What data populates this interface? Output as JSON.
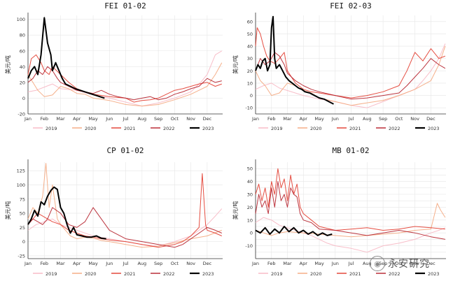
{
  "colors": {
    "2019": "#f7b7c3",
    "2020": "#f4a77e",
    "2021": "#e23b2e",
    "2022": "#b51f2a",
    "2023": "#000000",
    "grid": "#e6e6e6",
    "axis": "#333333"
  },
  "watermark": {
    "icon": "wechat-logo-icon",
    "text": "永安研究"
  },
  "chart_data": [
    {
      "type": "line",
      "title": "FEI 01-02",
      "ylabel": "美元/吨",
      "ylim": [
        -20,
        105
      ],
      "yticks": [
        -20,
        0,
        20,
        40,
        60,
        80,
        100
      ],
      "xticks": [
        "Jan",
        "Feb",
        "Mar",
        "Apr",
        "May",
        "Jun",
        "Jul",
        "Aug",
        "Sep",
        "Oct",
        "Nov",
        "Dec"
      ],
      "legend": "bottom",
      "series": [
        {
          "name": "2019",
          "x": [
            0,
            0.5,
            1,
            1.5,
            2,
            3,
            4,
            5,
            6,
            7,
            8,
            9,
            10,
            10.6,
            11,
            11.5,
            11.9
          ],
          "y": [
            8,
            10,
            14,
            18,
            12,
            10,
            4,
            0,
            -5,
            -10,
            -6,
            0,
            8,
            20,
            30,
            55,
            60
          ]
        },
        {
          "name": "2020",
          "x": [
            0,
            0.3,
            0.6,
            1,
            1.5,
            2,
            2.5,
            3,
            3.5,
            4,
            5,
            6,
            7,
            8,
            9,
            10,
            11,
            11.5,
            11.9
          ],
          "y": [
            30,
            20,
            10,
            2,
            4,
            15,
            12,
            6,
            5,
            0,
            -3,
            -8,
            -10,
            -8,
            -2,
            5,
            15,
            30,
            45
          ]
        },
        {
          "name": "2021",
          "x": [
            0,
            0.2,
            0.5,
            0.8,
            1,
            1.3,
            1.5,
            2,
            2.5,
            3,
            3.5,
            4,
            5,
            6,
            6.5,
            7,
            7.5,
            8,
            8.5,
            9,
            9.5,
            10,
            10.5,
            11,
            11.5,
            11.9
          ],
          "y": [
            30,
            50,
            55,
            45,
            35,
            30,
            40,
            30,
            20,
            12,
            8,
            5,
            2,
            0,
            -5,
            -3,
            -2,
            0,
            5,
            10,
            12,
            15,
            18,
            20,
            15,
            18
          ]
        },
        {
          "name": "2022",
          "x": [
            0,
            0.3,
            0.6,
            0.9,
            1.2,
            1.5,
            1.8,
            2,
            2.5,
            3,
            3.5,
            4,
            4.5,
            5,
            5.5,
            6,
            6.5,
            7,
            7.5,
            8,
            8.5,
            9,
            9.5,
            10,
            10.5,
            11,
            11.5,
            11.9
          ],
          "y": [
            20,
            25,
            35,
            30,
            40,
            35,
            25,
            20,
            15,
            10,
            8,
            6,
            10,
            5,
            2,
            0,
            -2,
            0,
            2,
            -2,
            0,
            5,
            8,
            12,
            15,
            25,
            20,
            22
          ]
        },
        {
          "name": "2023",
          "x": [
            0,
            0.2,
            0.4,
            0.6,
            0.8,
            1,
            1.2,
            1.4,
            1.5,
            1.7,
            1.9,
            2.1,
            2.3,
            2.6,
            2.9,
            3.2,
            3.5,
            3.8,
            4.1,
            4.4,
            4.7
          ],
          "y": [
            25,
            35,
            40,
            30,
            55,
            102,
            70,
            55,
            35,
            45,
            35,
            25,
            18,
            15,
            12,
            10,
            8,
            6,
            4,
            2,
            0
          ]
        }
      ]
    },
    {
      "type": "line",
      "title": "FEI 02-03",
      "ylabel": "美元/吨",
      "ylim": [
        -15,
        65
      ],
      "yticks": [
        -10,
        0,
        10,
        20,
        30,
        40,
        50,
        60
      ],
      "xticks": [
        "Jan",
        "Feb",
        "Mar",
        "Apr",
        "May",
        "Jun",
        "Jul",
        "Aug",
        "Sep",
        "Oct",
        "Nov",
        "Dec"
      ],
      "legend": "bottom",
      "series": [
        {
          "name": "2019",
          "x": [
            0,
            0.5,
            1,
            1.5,
            2,
            3,
            4,
            5,
            6,
            7,
            8,
            9,
            10,
            10.5,
            11,
            11.5,
            11.9
          ],
          "y": [
            5,
            8,
            10,
            6,
            4,
            0,
            -3,
            -5,
            -8,
            -10,
            -5,
            0,
            5,
            12,
            20,
            30,
            42
          ]
        },
        {
          "name": "2020",
          "x": [
            0,
            0.3,
            0.6,
            1,
            1.5,
            2,
            2.5,
            3,
            3.5,
            4,
            5,
            6,
            7,
            8,
            9,
            10,
            11,
            11.5,
            11.9
          ],
          "y": [
            20,
            12,
            8,
            0,
            2,
            10,
            8,
            4,
            2,
            -2,
            -5,
            -8,
            -6,
            -4,
            0,
            5,
            12,
            25,
            40
          ]
        },
        {
          "name": "2021",
          "x": [
            0,
            0.1,
            0.3,
            0.5,
            0.7,
            0.9,
            1.2,
            1.5,
            1.8,
            2,
            2.5,
            3,
            3.5,
            4,
            5,
            6,
            7,
            8,
            9,
            9.5,
            10,
            10.5,
            11,
            11.5,
            11.9
          ],
          "y": [
            40,
            55,
            50,
            40,
            32,
            28,
            26,
            30,
            35,
            20,
            10,
            5,
            3,
            2,
            0,
            -2,
            0,
            3,
            8,
            20,
            35,
            28,
            38,
            30,
            32
          ]
        },
        {
          "name": "2022",
          "x": [
            0,
            0.3,
            0.6,
            0.9,
            1.2,
            1.5,
            1.8,
            2,
            2.5,
            3,
            3.5,
            4,
            5,
            6,
            7,
            8,
            9,
            9.5,
            10,
            10.5,
            11,
            11.5,
            11.9
          ],
          "y": [
            20,
            30,
            25,
            28,
            35,
            32,
            25,
            18,
            12,
            8,
            5,
            3,
            0,
            -3,
            -2,
            0,
            2,
            8,
            15,
            22,
            30,
            25,
            22
          ]
        },
        {
          "name": "2023",
          "x": [
            0,
            0.15,
            0.3,
            0.45,
            0.6,
            0.75,
            0.9,
            1,
            1.1,
            1.2,
            1.3,
            1.5,
            1.7,
            1.9,
            2.1,
            2.3,
            2.5,
            2.7,
            2.9,
            3.1,
            3.4,
            3.7,
            4,
            4.3,
            4.6,
            4.9
          ],
          "y": [
            20,
            25,
            22,
            28,
            30,
            20,
            25,
            55,
            64,
            30,
            22,
            25,
            20,
            15,
            12,
            10,
            8,
            6,
            5,
            3,
            2,
            0,
            -2,
            -3,
            -5,
            -7
          ]
        }
      ]
    },
    {
      "type": "line",
      "title": "CP 01-02",
      "ylabel": "美元/吨",
      "ylim": [
        -30,
        140
      ],
      "yticks": [
        -25,
        0,
        25,
        50,
        75,
        100,
        125
      ],
      "xticks": [
        "Jan",
        "Feb",
        "Mar",
        "Apr",
        "May",
        "Jun",
        "Jul",
        "Aug",
        "Sep",
        "Oct",
        "Nov",
        "Dec"
      ],
      "legend": "bottom",
      "series": [
        {
          "name": "2019",
          "x": [
            0,
            0.5,
            1,
            1.5,
            2,
            3,
            4,
            5,
            6,
            7,
            8,
            9,
            10,
            10.5,
            11,
            11.5,
            11.9
          ],
          "y": [
            20,
            30,
            35,
            40,
            30,
            20,
            10,
            5,
            0,
            -5,
            -8,
            0,
            10,
            20,
            30,
            45,
            58
          ]
        },
        {
          "name": "2020",
          "x": [
            0,
            0.3,
            0.6,
            0.9,
            1.1,
            1.3,
            1.5,
            1.8,
            2,
            2.3,
            2.6,
            3,
            3.5,
            4,
            4.5,
            5,
            6,
            7,
            8,
            9,
            10,
            11,
            11.9
          ],
          "y": [
            40,
            60,
            50,
            80,
            138,
            60,
            100,
            40,
            30,
            20,
            10,
            5,
            8,
            6,
            2,
            0,
            -5,
            -10,
            -8,
            -2,
            5,
            10,
            20
          ]
        },
        {
          "name": "2021",
          "x": [
            0,
            0.3,
            0.6,
            0.9,
            1.2,
            1.5,
            2,
            2.5,
            3,
            3.5,
            4,
            4.5,
            5,
            6,
            7,
            8,
            9,
            9.5,
            10,
            10.5,
            10.7,
            10.9,
            11,
            11.5,
            11.9
          ],
          "y": [
            30,
            40,
            50,
            45,
            40,
            35,
            30,
            20,
            15,
            10,
            8,
            5,
            3,
            0,
            -5,
            -10,
            -5,
            0,
            10,
            25,
            120,
            30,
            20,
            15,
            10
          ]
        },
        {
          "name": "2022",
          "x": [
            0,
            0.3,
            0.6,
            0.9,
            1.2,
            1.5,
            2,
            2.5,
            3,
            3.5,
            4,
            4.5,
            5,
            6,
            7,
            8,
            9,
            9.5,
            10,
            10.5,
            11,
            11.5,
            11.9
          ],
          "y": [
            30,
            40,
            35,
            30,
            40,
            60,
            50,
            30,
            25,
            35,
            60,
            40,
            20,
            5,
            0,
            -5,
            -10,
            -5,
            5,
            15,
            25,
            20,
            15
          ]
        },
        {
          "name": "2023",
          "x": [
            0,
            0.2,
            0.4,
            0.6,
            0.8,
            1,
            1.2,
            1.4,
            1.6,
            1.8,
            2,
            2.2,
            2.4,
            2.6,
            2.8,
            3,
            3.3,
            3.6,
            3.9,
            4.2,
            4.5,
            4.8
          ],
          "y": [
            30,
            40,
            55,
            45,
            70,
            65,
            80,
            90,
            96,
            92,
            60,
            50,
            30,
            15,
            25,
            12,
            10,
            8,
            8,
            10,
            6,
            5
          ]
        }
      ]
    },
    {
      "type": "line",
      "title": "MB 01-02",
      "ylabel": "美元/吨",
      "ylim": [
        -20,
        55
      ],
      "yticks": [
        -15,
        -10,
        -5,
        0,
        5,
        10,
        15,
        20,
        25,
        30,
        35,
        40,
        45,
        50
      ],
      "ytick_labels": [
        "",
        "-10",
        "",
        "0",
        "",
        "10",
        "",
        "20",
        "",
        "30",
        "",
        "40",
        "",
        "50"
      ],
      "xticks": [
        "Jan",
        "Feb",
        "Mar",
        "Apr",
        "May",
        "Jun",
        "Jul",
        "Aug",
        "Sep",
        "Oct",
        "Nov",
        "Dec"
      ],
      "legend": "bottom",
      "series": [
        {
          "name": "2019",
          "x": [
            0,
            0.5,
            1,
            1.5,
            2,
            2.5,
            3,
            3.5,
            4,
            4.5,
            5,
            6,
            7,
            8,
            9,
            10,
            11,
            11.5,
            11.9
          ],
          "y": [
            8,
            12,
            10,
            6,
            4,
            2,
            0,
            -2,
            -5,
            -8,
            -10,
            -12,
            -15,
            -10,
            -8,
            -5,
            0,
            2,
            4
          ]
        },
        {
          "name": "2020",
          "x": [
            0,
            0.5,
            1,
            1.5,
            2,
            3,
            4,
            5,
            6,
            7,
            8,
            9,
            10,
            11,
            11.4,
            11.6,
            11.9
          ],
          "y": [
            2,
            0,
            -2,
            0,
            1,
            0,
            -1,
            -2,
            -3,
            -2,
            -1,
            0,
            2,
            3,
            23,
            18,
            12
          ]
        },
        {
          "name": "2021",
          "x": [
            0,
            0.2,
            0.4,
            0.6,
            0.8,
            1,
            1.2,
            1.4,
            1.6,
            1.8,
            2,
            2.2,
            2.4,
            2.6,
            2.8,
            3,
            3.5,
            4,
            5,
            6,
            7,
            8,
            9,
            10,
            11,
            11.9
          ],
          "y": [
            30,
            38,
            25,
            35,
            20,
            40,
            30,
            50,
            35,
            42,
            25,
            45,
            30,
            38,
            20,
            15,
            10,
            5,
            2,
            3,
            4,
            2,
            3,
            5,
            4,
            3
          ]
        },
        {
          "name": "2022",
          "x": [
            0,
            0.2,
            0.4,
            0.6,
            0.8,
            1,
            1.2,
            1.4,
            1.6,
            1.8,
            2,
            2.2,
            2.4,
            2.6,
            2.8,
            3,
            3.5,
            4,
            5,
            6,
            7,
            8,
            9,
            10,
            11,
            11.9
          ],
          "y": [
            15,
            30,
            20,
            25,
            15,
            35,
            20,
            40,
            25,
            30,
            20,
            35,
            30,
            28,
            15,
            10,
            8,
            3,
            2,
            0,
            -2,
            0,
            2,
            0,
            -3,
            -5
          ]
        },
        {
          "name": "2023",
          "x": [
            0,
            0.3,
            0.6,
            0.9,
            1.2,
            1.5,
            1.8,
            2.1,
            2.4,
            2.7,
            3,
            3.3,
            3.6,
            3.9,
            4.2,
            4.5,
            4.8
          ],
          "y": [
            2,
            0,
            4,
            -1,
            3,
            0,
            5,
            1,
            4,
            0,
            2,
            -1,
            1,
            -2,
            0,
            -2,
            -1
          ]
        }
      ]
    }
  ]
}
